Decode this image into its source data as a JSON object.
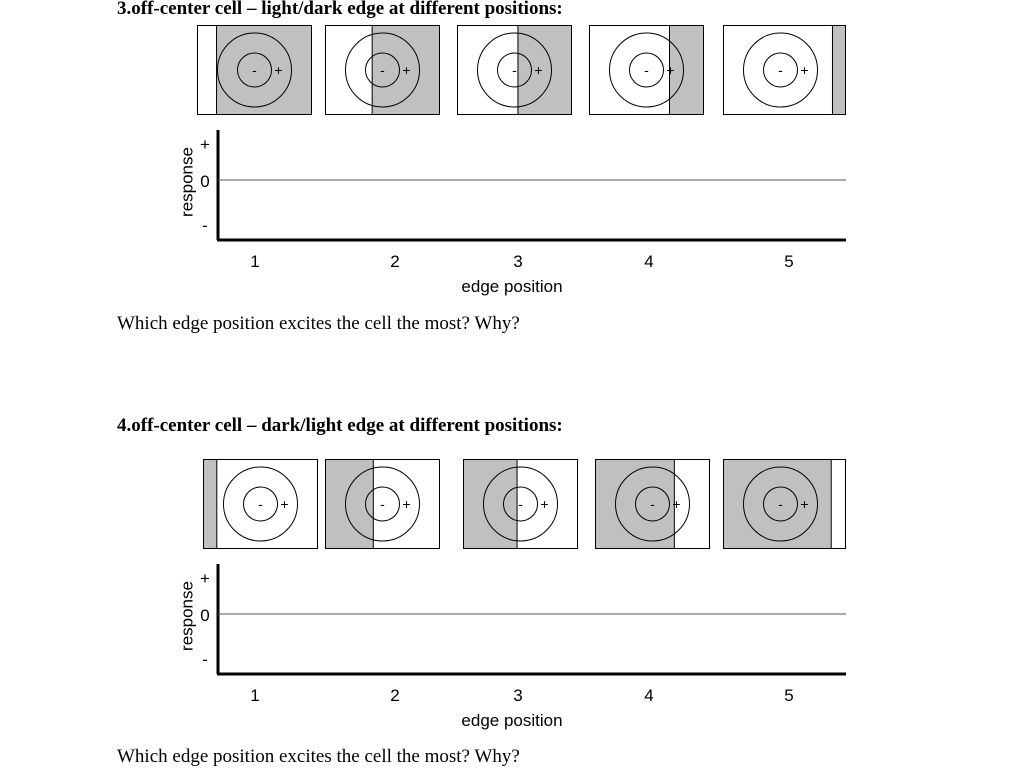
{
  "sections": [
    {
      "number": 3,
      "heading": "3.off-center cell – light/dark edge at different positions:",
      "question": "Which edge position excites the cell the most? Why?",
      "edge_type": "light/dark",
      "panel_labels": {
        "center": "-",
        "surround": "+"
      },
      "panels": [
        {
          "position": 1,
          "dark_side": "right",
          "edge_fraction": 0.17
        },
        {
          "position": 2,
          "dark_side": "right",
          "edge_fraction": 0.41
        },
        {
          "position": 3,
          "dark_side": "right",
          "edge_fraction": 0.53
        },
        {
          "position": 4,
          "dark_side": "right",
          "edge_fraction": 0.7
        },
        {
          "position": 5,
          "dark_side": "right",
          "edge_fraction": 0.89
        }
      ],
      "chart_data": {
        "type": "line",
        "title": "",
        "xlabel": "edge position",
        "ylabel": "response",
        "x_ticks": [
          "1",
          "2",
          "3",
          "4",
          "5"
        ],
        "y_ticks": [
          "+",
          "0",
          "-"
        ],
        "series": []
      }
    },
    {
      "number": 4,
      "heading": "4.off-center cell – dark/light edge at different positions:",
      "question": "Which edge position excites the cell the most? Why?",
      "edge_type": "dark/light",
      "panel_labels": {
        "center": "-",
        "surround": "+"
      },
      "panels": [
        {
          "position": 1,
          "dark_side": "left",
          "edge_fraction": 0.12
        },
        {
          "position": 2,
          "dark_side": "left",
          "edge_fraction": 0.42
        },
        {
          "position": 3,
          "dark_side": "left",
          "edge_fraction": 0.47
        },
        {
          "position": 4,
          "dark_side": "left",
          "edge_fraction": 0.69
        },
        {
          "position": 5,
          "dark_side": "left",
          "edge_fraction": 0.88
        }
      ],
      "chart_data": {
        "type": "line",
        "title": "",
        "xlabel": "edge position",
        "ylabel": "response",
        "x_ticks": [
          "1",
          "2",
          "3",
          "4",
          "5"
        ],
        "y_ticks": [
          "+",
          "0",
          "-"
        ],
        "series": []
      }
    }
  ],
  "colors": {
    "dark_fill": "#c0c0c0",
    "light_fill": "#ffffff",
    "ink": "#000000",
    "zero_line": "#555555"
  }
}
